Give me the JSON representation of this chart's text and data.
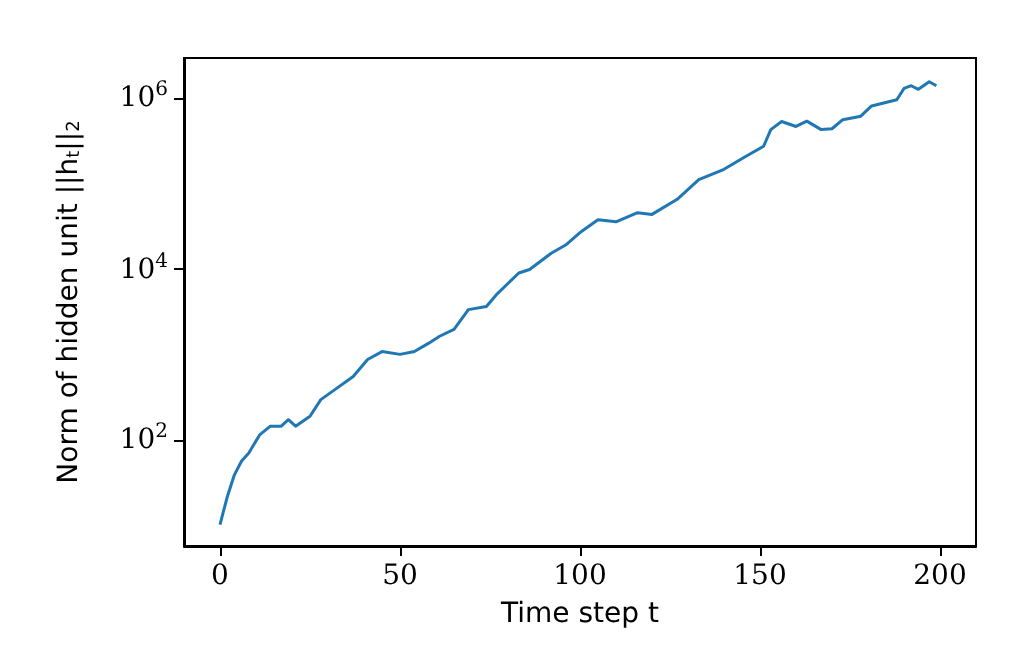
{
  "chart_data": {
    "type": "line",
    "xlabel": "Time step t",
    "ylabel": "Norm of hidden unit ||h$_{t}$||$_{2}$",
    "log": "y",
    "grid": false,
    "marker": "none",
    "line_style": "solid",
    "xlim": [
      -10,
      210
    ],
    "xticks": [
      0,
      50,
      100,
      150,
      200
    ],
    "ylim": [
      5.9,
      2950000
    ],
    "yticks": [
      {
        "value": 100,
        "label": "10$^{2}$"
      },
      {
        "value": 10000,
        "label": "10$^{4}$"
      },
      {
        "value": 1000000,
        "label": "10$^{6}$"
      }
    ],
    "series": [
      {
        "color": "#1f77b4",
        "x": [
          0,
          2,
          4,
          6,
          8,
          11,
          14,
          17,
          19,
          21,
          25,
          28,
          32,
          37,
          41,
          45,
          50,
          54,
          58,
          61,
          65,
          69,
          74,
          77,
          83,
          86,
          92,
          96,
          100,
          105,
          110,
          116,
          120,
          127,
          133,
          140,
          146,
          151,
          153,
          156,
          160,
          163,
          167,
          170,
          173,
          178,
          181,
          188,
          190,
          192,
          194,
          197,
          199
        ],
        "values": [
          10.5,
          22,
          40,
          58,
          72,
          117,
          148,
          148,
          176,
          148,
          193,
          302,
          398,
          563,
          890,
          1100,
          1020,
          1100,
          1380,
          1660,
          2000,
          3400,
          3700,
          5200,
          9100,
          10000,
          15500,
          19300,
          27000,
          38000,
          36000,
          46000,
          44000,
          66000,
          112000,
          148000,
          209000,
          275000,
          430000,
          535000,
          468000,
          540000,
          430000,
          440000,
          562000,
          617000,
          813000,
          960000,
          1300000,
          1400000,
          1270000,
          1560000,
          1400000
        ]
      }
    ]
  }
}
